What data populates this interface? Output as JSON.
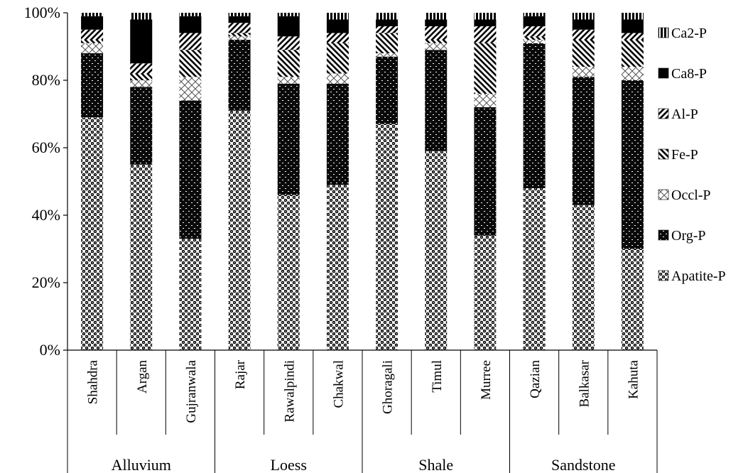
{
  "chart_data": {
    "type": "bar",
    "stacked": true,
    "normalized": true,
    "categories": [
      "Shahdra",
      "Argan",
      "Gujranwala",
      "Rajar",
      "Rawalpindi",
      "Chakwal",
      "Ghoragali",
      "Timul",
      "Murree",
      "Qazian",
      "Balkasar",
      "Kahuta"
    ],
    "groups": [
      {
        "label": "Alluvium",
        "count": 3
      },
      {
        "label": "Loess",
        "count": 3
      },
      {
        "label": "Shale",
        "count": 3
      },
      {
        "label": "Sandstone",
        "count": 3
      }
    ],
    "ylim": [
      0,
      100
    ],
    "yticks": [
      "0%",
      "20%",
      "40%",
      "60%",
      "80%",
      "100%"
    ],
    "grid": false,
    "legend_position": "right",
    "series": [
      {
        "name": "Apatite-P",
        "values": [
          69,
          55,
          33,
          71,
          46,
          49,
          67,
          59,
          34,
          48,
          43,
          30
        ]
      },
      {
        "name": "Org-P",
        "values": [
          19,
          23,
          41,
          21,
          33,
          30,
          20,
          30,
          38,
          43,
          38,
          50
        ]
      },
      {
        "name": "Occl-P",
        "values": [
          3,
          2,
          7,
          1,
          2,
          3,
          1,
          2,
          4,
          1,
          3,
          4
        ]
      },
      {
        "name": "Fe-P",
        "values": [
          1,
          2,
          8,
          1,
          8,
          9,
          6,
          1,
          15,
          1,
          8,
          8
        ]
      },
      {
        "name": "Al-P",
        "values": [
          3,
          3,
          5,
          3,
          4,
          3,
          2,
          4,
          5,
          3,
          3,
          2
        ]
      },
      {
        "name": "Ca8-P",
        "values": [
          4,
          13,
          5,
          2,
          6,
          4,
          2,
          2,
          2,
          3,
          3,
          4
        ]
      },
      {
        "name": "Ca2-P",
        "values": [
          1,
          2,
          1,
          1,
          1,
          2,
          2,
          2,
          2,
          1,
          2,
          2
        ]
      }
    ]
  }
}
